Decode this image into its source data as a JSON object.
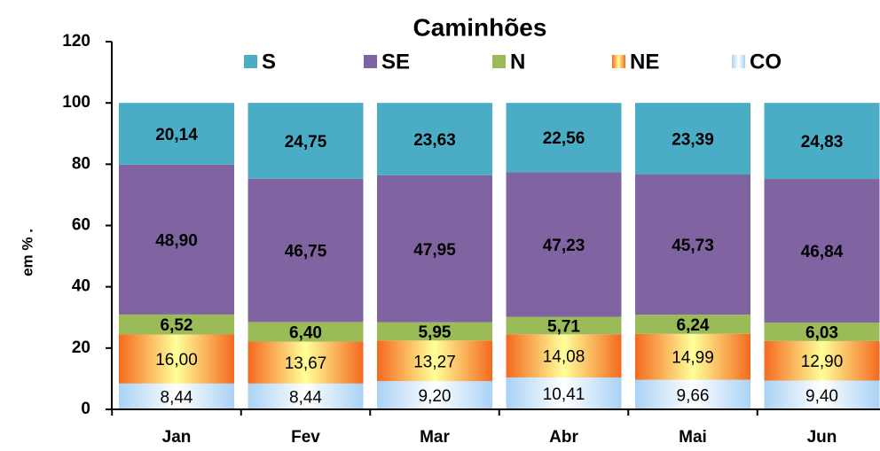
{
  "chart_data": {
    "type": "stacked_bar",
    "title": "Caminhões",
    "y_label": "em %  .",
    "categories": [
      "Jan",
      "Fev",
      "Mar",
      "Abr",
      "Mai",
      "Jun"
    ],
    "ylim": [
      0,
      120
    ],
    "yticks": [
      0,
      20,
      40,
      60,
      80,
      100,
      120
    ],
    "legend": "top",
    "series": [
      {
        "name": "CO",
        "color": "#a9d2f5",
        "values": [
          8.44,
          8.44,
          9.2,
          10.41,
          9.66,
          9.4
        ],
        "value_labels": [
          "8,44",
          "8,44",
          "9,20",
          "10,41",
          "9,66",
          "9,40"
        ]
      },
      {
        "name": "NE",
        "color": "#f46a1f",
        "values": [
          16.0,
          13.67,
          13.27,
          14.08,
          14.99,
          12.9
        ],
        "value_labels": [
          "16,00",
          "13,67",
          "13,27",
          "14,08",
          "14,99",
          "12,90"
        ]
      },
      {
        "name": "N",
        "color": "#9bbb59",
        "values": [
          6.52,
          6.4,
          5.95,
          5.71,
          6.24,
          6.03
        ],
        "value_labels": [
          "6,52",
          "6,40",
          "5,95",
          "5,71",
          "6,24",
          "6,03"
        ]
      },
      {
        "name": "SE",
        "color": "#8064a2",
        "values": [
          48.9,
          46.75,
          47.95,
          47.23,
          45.73,
          46.84
        ],
        "value_labels": [
          "48,90",
          "46,75",
          "47,95",
          "47,23",
          "45,73",
          "46,84"
        ]
      },
      {
        "name": "S",
        "color": "#4bacc6",
        "values": [
          20.14,
          24.75,
          23.63,
          22.56,
          23.39,
          24.83
        ],
        "value_labels": [
          "20,14",
          "24,75",
          "23,63",
          "22,56",
          "23,39",
          "24,83"
        ]
      }
    ]
  }
}
